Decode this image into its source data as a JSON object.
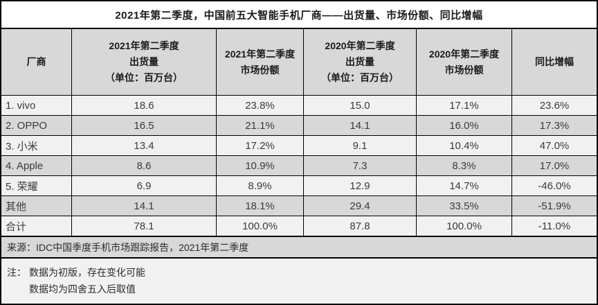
{
  "title": "2021年第二季度，中国前五大智能手机厂商——出货量、市场份额、同比增幅",
  "table": {
    "headers": [
      {
        "lines": [
          "厂商"
        ]
      },
      {
        "lines": [
          "2021年第二季度",
          "出货量",
          "（单位：百万台）"
        ]
      },
      {
        "lines": [
          "2021年第二季度",
          "市场份额"
        ]
      },
      {
        "lines": [
          "2020年第二季度",
          "出货量",
          "（单位：百万台）"
        ]
      },
      {
        "lines": [
          "2020年第二季度",
          "市场份额"
        ]
      },
      {
        "lines": [
          "同比增幅"
        ]
      }
    ],
    "rows": [
      {
        "vendor": "1. vivo",
        "q2_2021_shipments": "18.6",
        "q2_2021_share": "23.8%",
        "q2_2020_shipments": "15.0",
        "q2_2020_share": "17.1%",
        "yoy_growth": "23.6%"
      },
      {
        "vendor": "2. OPPO",
        "q2_2021_shipments": "16.5",
        "q2_2021_share": "21.1%",
        "q2_2020_shipments": "14.1",
        "q2_2020_share": "16.0%",
        "yoy_growth": "17.3%"
      },
      {
        "vendor": "3. 小米",
        "q2_2021_shipments": "13.4",
        "q2_2021_share": "17.2%",
        "q2_2020_shipments": "9.1",
        "q2_2020_share": "10.4%",
        "yoy_growth": "47.0%"
      },
      {
        "vendor": "4. Apple",
        "q2_2021_shipments": "8.6",
        "q2_2021_share": "10.9%",
        "q2_2020_shipments": "7.3",
        "q2_2020_share": "8.3%",
        "yoy_growth": "17.0%"
      },
      {
        "vendor": "5. 荣耀",
        "q2_2021_shipments": "6.9",
        "q2_2021_share": "8.9%",
        "q2_2020_shipments": "12.9",
        "q2_2020_share": "14.7%",
        "yoy_growth": "-46.0%"
      },
      {
        "vendor": "其他",
        "q2_2021_shipments": "14.1",
        "q2_2021_share": "18.1%",
        "q2_2020_shipments": "29.4",
        "q2_2020_share": "33.5%",
        "yoy_growth": "-51.9%"
      },
      {
        "vendor": "合计",
        "q2_2021_shipments": "78.1",
        "q2_2021_share": "100.0%",
        "q2_2020_shipments": "87.8",
        "q2_2020_share": "100.0%",
        "yoy_growth": "-11.0%"
      }
    ]
  },
  "source": "来源：IDC中国季度手机市场跟踪报告，2021年第二季度",
  "notes": {
    "label": "注：",
    "lines": [
      "数据为初版，存在变化可能",
      "数据均为四舍五入后取值"
    ]
  },
  "colors": {
    "row_light": "#f1f1f1",
    "row_gray": "#d8d8d8",
    "border": "#000000",
    "title_bg": "#ffffff",
    "text": "#3a3a3a"
  },
  "chart_data": {
    "type": "table",
    "title": "2021年第二季度，中国前五大智能手机厂商——出货量、市场份额、同比增幅",
    "columns": [
      "厂商",
      "2021年第二季度出货量（单位：百万台）",
      "2021年第二季度市场份额",
      "2020年第二季度出货量（单位：百万台）",
      "2020年第二季度市场份额",
      "同比增幅"
    ],
    "rows": [
      [
        "1. vivo",
        18.6,
        "23.8%",
        15.0,
        "17.1%",
        "23.6%"
      ],
      [
        "2. OPPO",
        16.5,
        "21.1%",
        14.1,
        "16.0%",
        "17.3%"
      ],
      [
        "3. 小米",
        13.4,
        "17.2%",
        9.1,
        "10.4%",
        "47.0%"
      ],
      [
        "4. Apple",
        8.6,
        "10.9%",
        7.3,
        "8.3%",
        "17.0%"
      ],
      [
        "5. 荣耀",
        6.9,
        "8.9%",
        12.9,
        "14.7%",
        "-46.0%"
      ],
      [
        "其他",
        14.1,
        "18.1%",
        29.4,
        "33.5%",
        "-51.9%"
      ],
      [
        "合计",
        78.1,
        "100.0%",
        87.8,
        "100.0%",
        "-11.0%"
      ]
    ],
    "source": "来源：IDC中国季度手机市场跟踪报告，2021年第二季度",
    "notes": [
      "数据为初版，存在变化可能",
      "数据均为四舍五入后取值"
    ]
  }
}
